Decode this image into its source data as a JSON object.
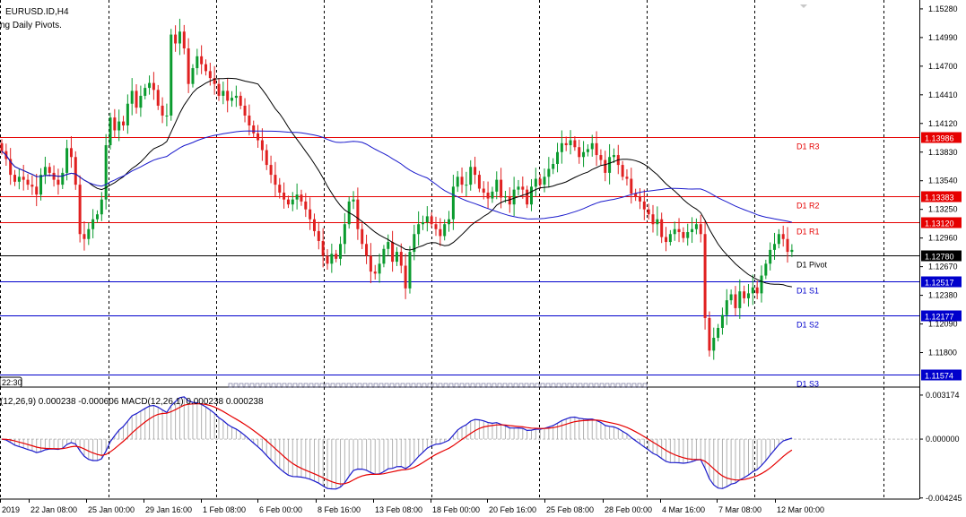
{
  "header": {
    "symbol": "EURUSD.ID,H4",
    "indicator": "ng Daily Pivots."
  },
  "macd_label": "(12,26,9) 0.000238 -0.000606 MACD(12,26,1) 0.000238 0.000238",
  "corner_time": "22:30",
  "colors": {
    "candle_up": "#0a9b2e",
    "candle_down": "#e02020",
    "ma_fast": "#000000",
    "ma_slow": "#1a1acc",
    "resistance": "#e60000",
    "pivot": "#000000",
    "support": "#0000cc",
    "grid": "#000000",
    "macd_main": "#1a1acc",
    "macd_signal": "#e60000",
    "histogram": "#b0b0b0"
  },
  "chart_data": [
    {
      "type": "candlestick",
      "ylim": [
        1.1146,
        1.1537
      ],
      "price_ticks": [
        "1.15280",
        "1.14990",
        "1.14700",
        "1.14410",
        "1.14120",
        "1.13830",
        "1.13540",
        "1.13250",
        "1.12960",
        "1.12670",
        "1.12380",
        "1.12090",
        "1.11800"
      ],
      "time_labels": [
        "2019",
        "22 Jan 08:00",
        "25 Jan 00:00",
        "29 Jan 16:00",
        "1 Feb 08:00",
        "6 Feb 00:00",
        "8 Feb 16:00",
        "13 Feb 08:00",
        "18 Feb 00:00",
        "20 Feb 16:00",
        "25 Feb 08:00",
        "28 Feb 00:00",
        "4 Mar 16:00",
        "7 Mar 08:00",
        "12 Mar 00:00"
      ],
      "closes": [
        1.1384,
        1.1376,
        1.136,
        1.1353,
        1.1358,
        1.1355,
        1.135,
        1.1348,
        1.134,
        1.136,
        1.1368,
        1.1362,
        1.1355,
        1.135,
        1.1362,
        1.1387,
        1.1378,
        1.135,
        1.13,
        1.1295,
        1.1305,
        1.1315,
        1.132,
        1.1335,
        1.139,
        1.1418,
        1.1405,
        1.1414,
        1.141,
        1.1432,
        1.1445,
        1.1428,
        1.144,
        1.1448,
        1.1453,
        1.1446,
        1.143,
        1.142,
        1.142,
        1.1502,
        1.1493,
        1.1505,
        1.1488,
        1.1452,
        1.1468,
        1.148,
        1.1472,
        1.1465,
        1.1458,
        1.1452,
        1.144,
        1.1445,
        1.1435,
        1.1438,
        1.144,
        1.143,
        1.142,
        1.141,
        1.1402,
        1.1395,
        1.1385,
        1.137,
        1.136,
        1.135,
        1.1342,
        1.1335,
        1.133,
        1.1335,
        1.134,
        1.1333,
        1.1325,
        1.1315,
        1.1303,
        1.1293,
        1.1278,
        1.127,
        1.128,
        1.1275,
        1.129,
        1.131,
        1.1333,
        1.1335,
        1.1305,
        1.129,
        1.1278,
        1.1262,
        1.126,
        1.127,
        1.1285,
        1.1292,
        1.1272,
        1.1282,
        1.1268,
        1.1245,
        1.1282,
        1.13,
        1.131,
        1.1312,
        1.1318,
        1.131,
        1.1305,
        1.1298,
        1.131,
        1.1315,
        1.1348,
        1.1358,
        1.135,
        1.135,
        1.1368,
        1.136,
        1.1346,
        1.1342,
        1.1336,
        1.1343,
        1.1355,
        1.1337,
        1.1338,
        1.133,
        1.1345,
        1.1348,
        1.1345,
        1.133,
        1.1348,
        1.1356,
        1.135,
        1.1358,
        1.1366,
        1.1371,
        1.1383,
        1.1392,
        1.139,
        1.1395,
        1.1388,
        1.1378,
        1.1383,
        1.1386,
        1.1392,
        1.138,
        1.1375,
        1.1362,
        1.1378,
        1.138,
        1.137,
        1.1358,
        1.1356,
        1.1341,
        1.1338,
        1.1333,
        1.1325,
        1.132,
        1.131,
        1.1315,
        1.1297,
        1.1292,
        1.13,
        1.1305,
        1.1302,
        1.1296,
        1.1302,
        1.1305,
        1.131,
        1.13,
        1.1215,
        1.1182,
        1.1195,
        1.1205,
        1.1218,
        1.1233,
        1.1239,
        1.1225,
        1.1242,
        1.1235,
        1.124,
        1.1246,
        1.124,
        1.1258,
        1.127,
        1.1284,
        1.129,
        1.13,
        1.1295,
        1.1282,
        1.1284
      ],
      "levels": [
        {
          "label": "D1 R3",
          "price": "1.13986",
          "value": 1.13986,
          "kind": "resistance"
        },
        {
          "label": "D1 R2",
          "price": "1.13383",
          "value": 1.13383,
          "kind": "resistance"
        },
        {
          "label": "D1 R1",
          "price": "1.13120",
          "value": 1.1312,
          "kind": "resistance"
        },
        {
          "label": "D1 Pivot",
          "price": "1.12780",
          "value": 1.1278,
          "kind": "pivot"
        },
        {
          "label": "D1 S1",
          "price": "1.12517",
          "value": 1.12517,
          "kind": "support"
        },
        {
          "label": "D1 S2",
          "price": "1.12177",
          "value": 1.12177,
          "kind": "support"
        },
        {
          "label": "D1 S3",
          "price": "1.11574",
          "value": 1.11574,
          "kind": "support"
        }
      ]
    },
    {
      "type": "line",
      "title": "MACD",
      "ylim": [
        -0.00426,
        0.00317
      ],
      "ticks": [
        "0.003174",
        "0.000000",
        "-0.004245"
      ]
    }
  ]
}
